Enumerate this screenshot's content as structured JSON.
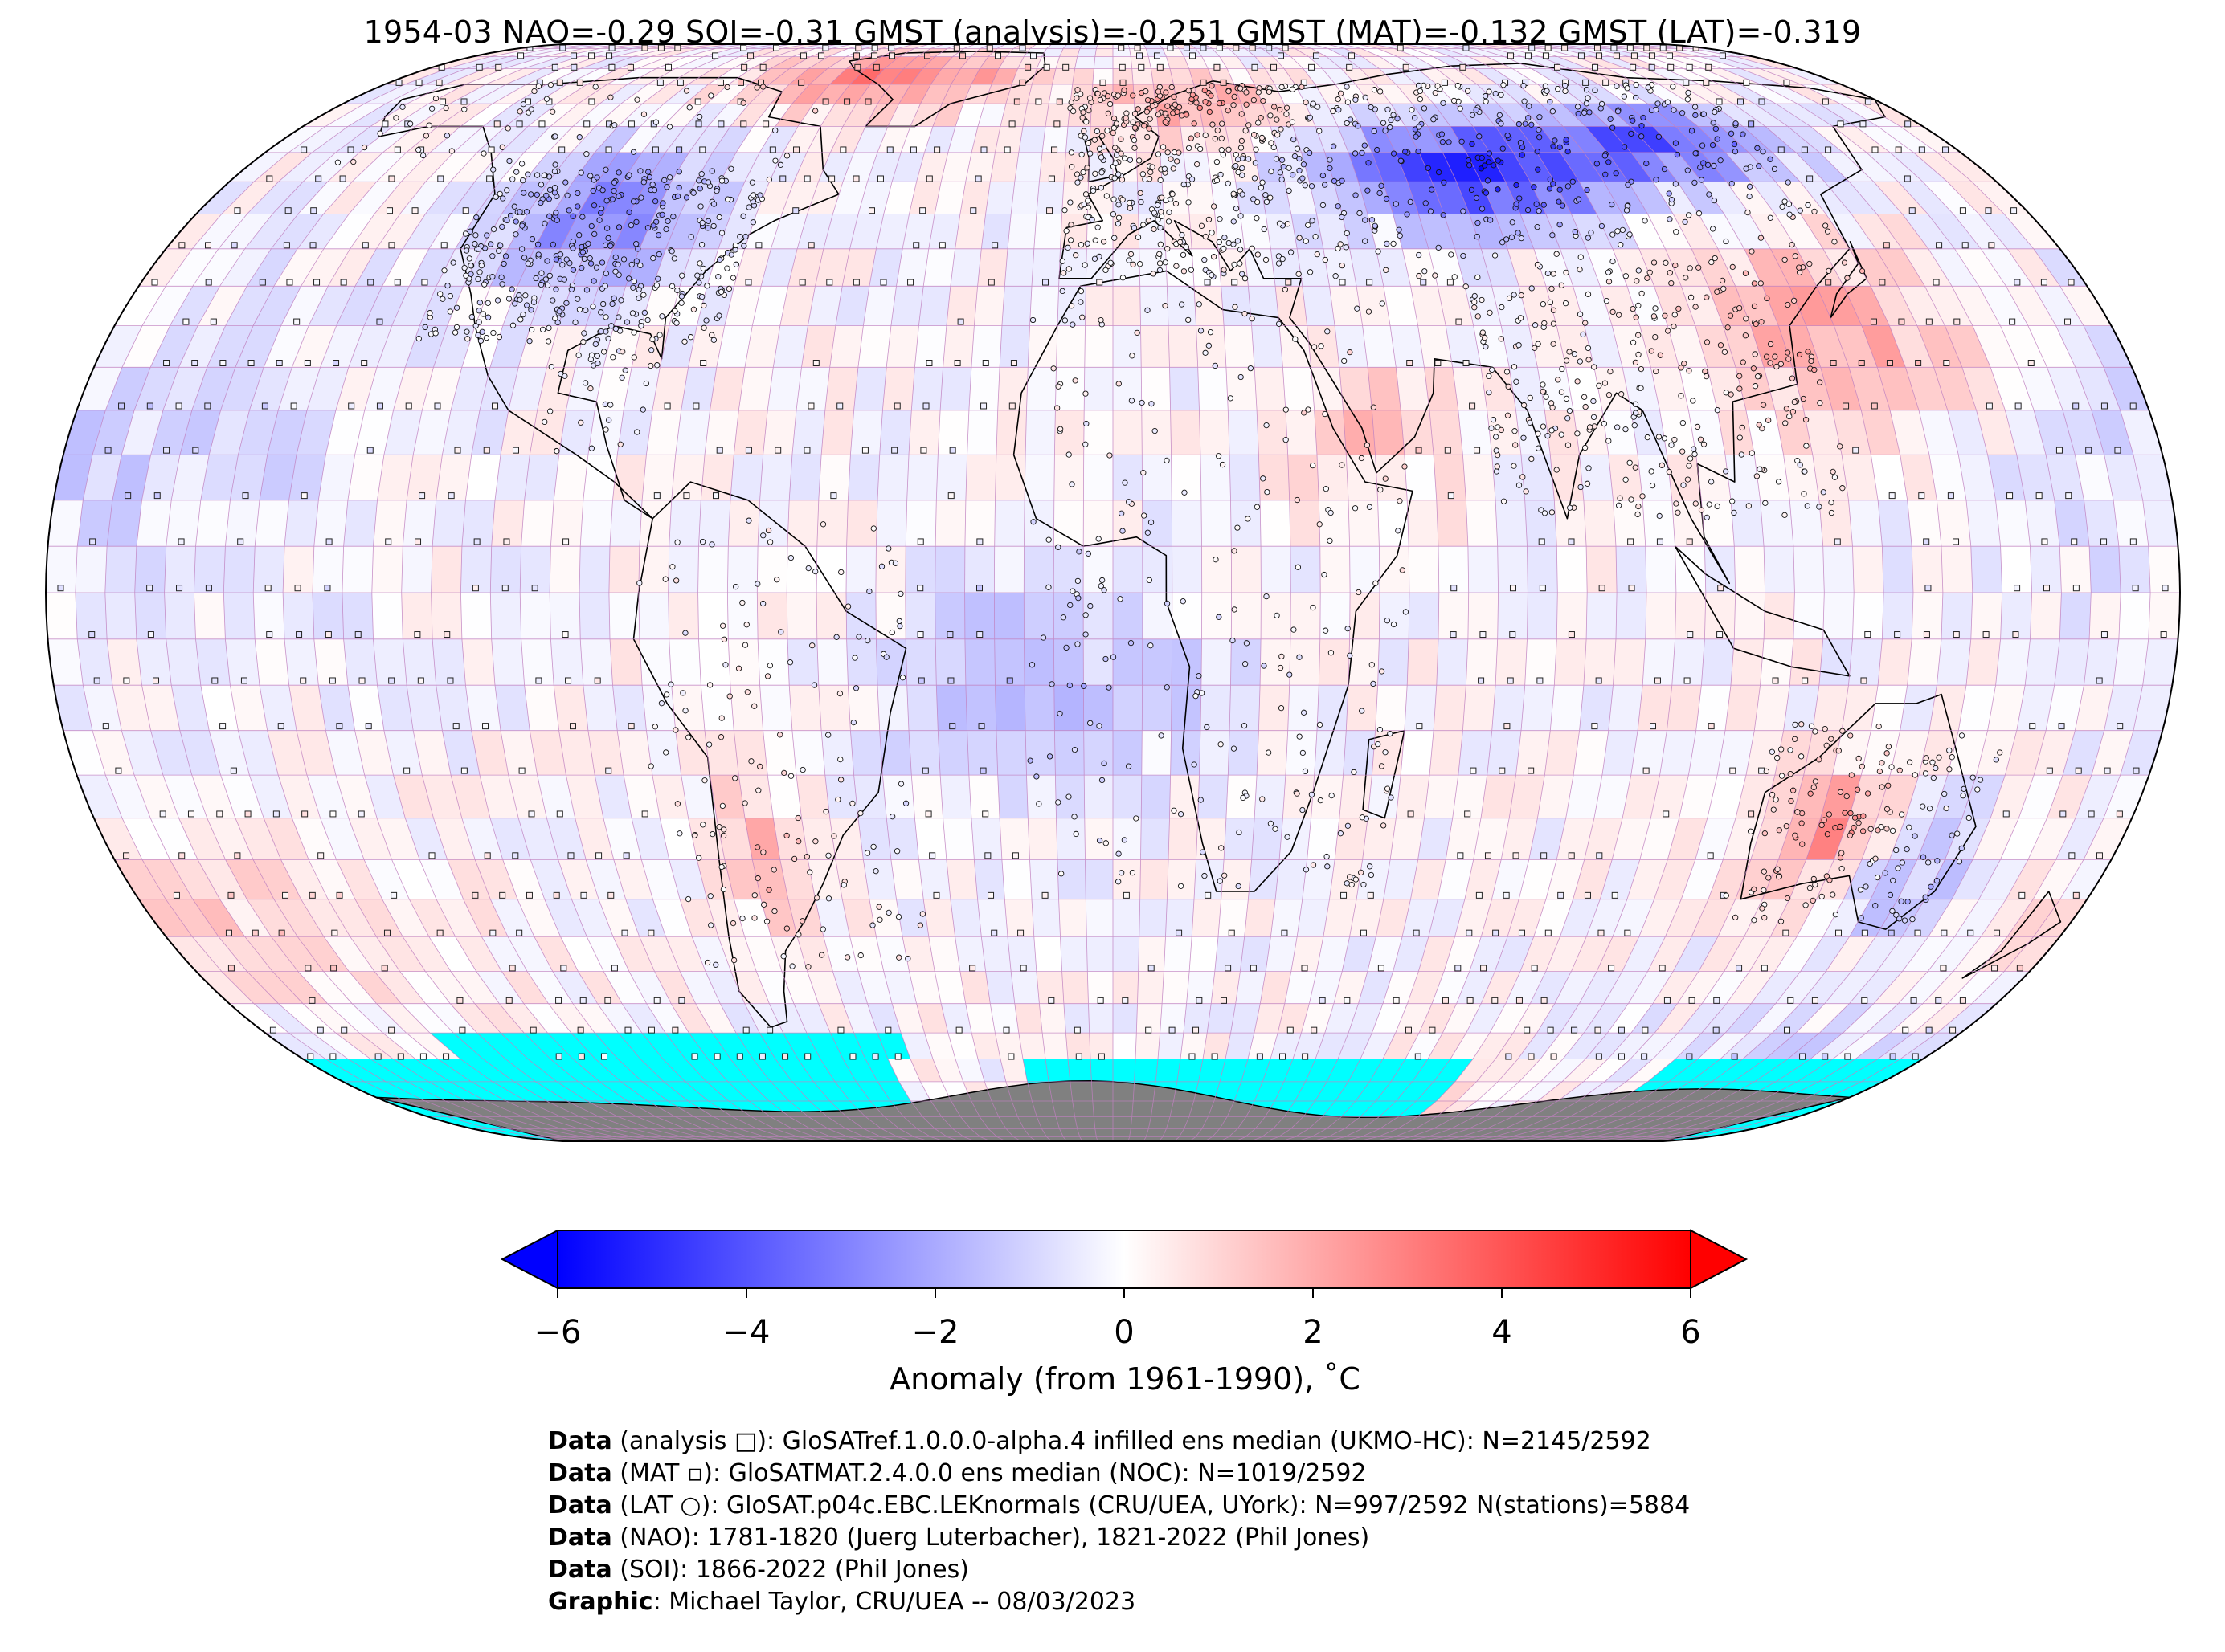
{
  "title": "1954-03 NAO=-0.29 SOI=-0.31 GMST (analysis)=-0.251 GMST (MAT)=-0.132 GMST (LAT)=-0.319",
  "map": {
    "projection": "Robinson",
    "colors": {
      "ocean_missing": "#00ffff",
      "land_ice": "#808080",
      "grid_line": "#c080c0",
      "coast": "#000000"
    }
  },
  "colorbar": {
    "label": "Anomaly (from 1961-1990), ˚C",
    "ticks": [
      "−6",
      "−4",
      "−2",
      "0",
      "2",
      "4",
      "6"
    ],
    "tick_values": [
      -6,
      -4,
      -2,
      0,
      2,
      4,
      6
    ],
    "range": [
      -6,
      6
    ],
    "extend": "both",
    "colors": {
      "min": "#0000ff",
      "mid": "#ffffff",
      "max": "#ff0000"
    }
  },
  "credits": [
    {
      "bold": "Data",
      "text": " (analysis □): GloSATref.1.0.0.0-alpha.4 infilled ens median (UKMO-HC): N=2145/2592"
    },
    {
      "bold": "Data",
      "text": " (MAT ▫): GloSATMAT.2.4.0.0 ens median (NOC): N=1019/2592"
    },
    {
      "bold": "Data",
      "text": " (LAT ○): GloSAT.p04c.EBC.LEKnormals (CRU/UEA, UYork): N=997/2592 N(stations)=5884"
    },
    {
      "bold": "Data",
      "text": " (NAO): 1781-1820 (Juerg Luterbacher), 1821-2022 (Phil Jones)"
    },
    {
      "bold": "Data",
      "text": " (SOI): 1866-2022 (Phil Jones)"
    },
    {
      "bold": "Graphic",
      "text": ": Michael Taylor, CRU/UEA -- 08/03/2023"
    }
  ]
}
